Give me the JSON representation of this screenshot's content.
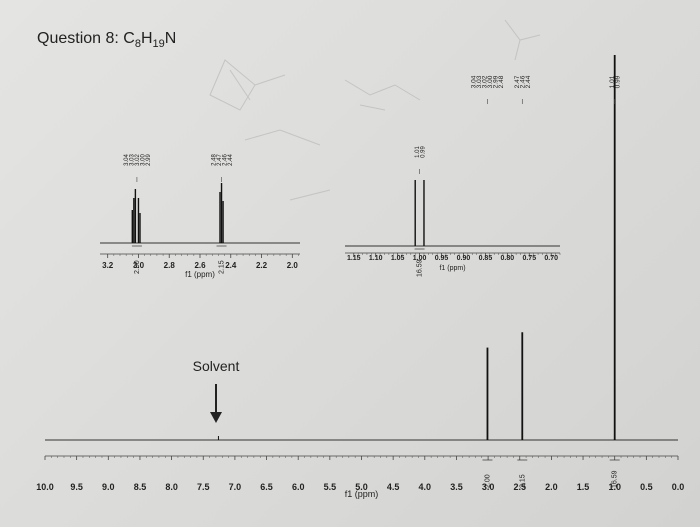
{
  "title": {
    "prefix": "Question 8: ",
    "formula_parts": [
      {
        "text": "C",
        "sub": false
      },
      {
        "text": "8",
        "sub": true
      },
      {
        "text": "H",
        "sub": false
      },
      {
        "text": "19",
        "sub": true
      },
      {
        "text": "N",
        "sub": false
      }
    ]
  },
  "solvent_label": "Solvent",
  "chart_data": [
    {
      "type": "line",
      "name": "main-spectrum",
      "xlabel": "f1 (ppm)",
      "ticks": [
        "10.0",
        "9.5",
        "9.0",
        "8.5",
        "8.0",
        "7.5",
        "7.0",
        "6.5",
        "6.0",
        "5.5",
        "5.0",
        "4.5",
        "4.0",
        "3.5",
        "3.0",
        "2.5",
        "2.0",
        "1.5",
        "1.0",
        "0.5",
        "0.0"
      ],
      "xlim": [
        10.0,
        0.0
      ],
      "peaks": [
        {
          "ppm": 3.01,
          "height": 0.24
        },
        {
          "ppm": 2.46,
          "height": 0.28
        },
        {
          "ppm": 1.0,
          "height": 1.0
        }
      ],
      "solvent_ppm": 7.26,
      "integrals": [
        {
          "ppm": 3.01,
          "value": "2.00"
        },
        {
          "ppm": 2.46,
          "value": "2.15"
        },
        {
          "ppm": 1.0,
          "value": "16.59"
        }
      ],
      "peak_labels": [
        {
          "ppm": 3.01,
          "labels": [
            "3.04",
            "3.03",
            "3.02",
            "3.00",
            "2.99",
            "2.48"
          ]
        },
        {
          "ppm": 2.46,
          "labels": [
            "2.47",
            "2.46",
            "2.44"
          ]
        },
        {
          "ppm": 1.0,
          "labels": [
            "1.01",
            "0.99"
          ]
        }
      ]
    },
    {
      "type": "line",
      "name": "inset-1",
      "xlabel": "f1 (ppm)",
      "ticks": [
        "3.2",
        "3.0",
        "2.8",
        "2.6",
        "2.4",
        "2.2",
        "2.0"
      ],
      "xlim": [
        3.25,
        1.95
      ],
      "peaks": [
        {
          "ppm": 3.04,
          "height": 0.55
        },
        {
          "ppm": 3.03,
          "height": 0.75
        },
        {
          "ppm": 3.02,
          "height": 0.9
        },
        {
          "ppm": 3.0,
          "height": 0.75
        },
        {
          "ppm": 2.99,
          "height": 0.5
        },
        {
          "ppm": 2.47,
          "height": 0.85
        },
        {
          "ppm": 2.46,
          "height": 1.0
        },
        {
          "ppm": 2.45,
          "height": 0.7
        }
      ],
      "integrals": [
        {
          "ppm": 3.01,
          "value": "2.00"
        },
        {
          "ppm": 2.46,
          "value": "2.15"
        }
      ],
      "peak_label_groups": [
        {
          "ppm": 3.01,
          "labels": [
            "3.04",
            "3.03",
            "3.02",
            "3.00",
            "2.99"
          ]
        },
        {
          "ppm": 2.46,
          "labels": [
            "2.48",
            "2.47",
            "2.46",
            "2.44"
          ]
        }
      ]
    },
    {
      "type": "line",
      "name": "inset-2",
      "xlabel": "f1 (ppm)",
      "ticks": [
        "1.15",
        "1.10",
        "1.05",
        "1.00",
        "0.95",
        "0.90",
        "0.85",
        "0.80",
        "0.75",
        "0.70"
      ],
      "xlim": [
        1.17,
        0.68
      ],
      "peaks": [
        {
          "ppm": 1.01,
          "height": 1.0
        },
        {
          "ppm": 0.99,
          "height": 1.0
        }
      ],
      "integrals": [
        {
          "ppm": 1.0,
          "value": "16.59"
        }
      ],
      "peak_label_groups": [
        {
          "ppm": 1.0,
          "labels": [
            "1.01",
            "0.99"
          ]
        }
      ]
    }
  ]
}
